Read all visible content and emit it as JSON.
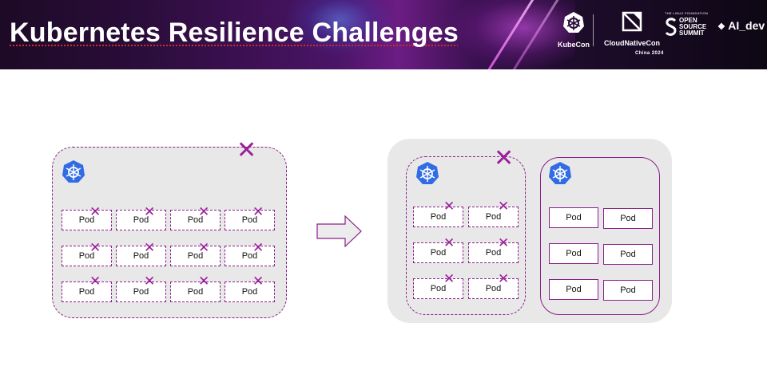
{
  "header": {
    "title": "Kubernetes Resilience Challenges",
    "logos": {
      "kubecon": "KubeCon",
      "cloudnativecon": "CloudNativeCon",
      "edition": "China 2024",
      "oss_small": "THE LINUX FOUNDATION",
      "oss_big": [
        "OPEN",
        "SOURCE",
        "SUMMIT"
      ],
      "ai_dev": "AI_dev"
    }
  },
  "diagram": {
    "pod_label": "Pod",
    "failed_mark": "✕",
    "colors": {
      "accent": "#8b1f8b",
      "cluster_fill": "#e8e8e8",
      "k8s_blue": "#326ce5"
    },
    "left_cluster": {
      "status": "failed",
      "pods": 12
    },
    "right_clusters": [
      {
        "status": "failed",
        "pods": 6
      },
      {
        "status": "healthy",
        "pods": 6
      }
    ],
    "icons": [
      "kubernetes-icon",
      "failover-arrow-icon"
    ]
  }
}
